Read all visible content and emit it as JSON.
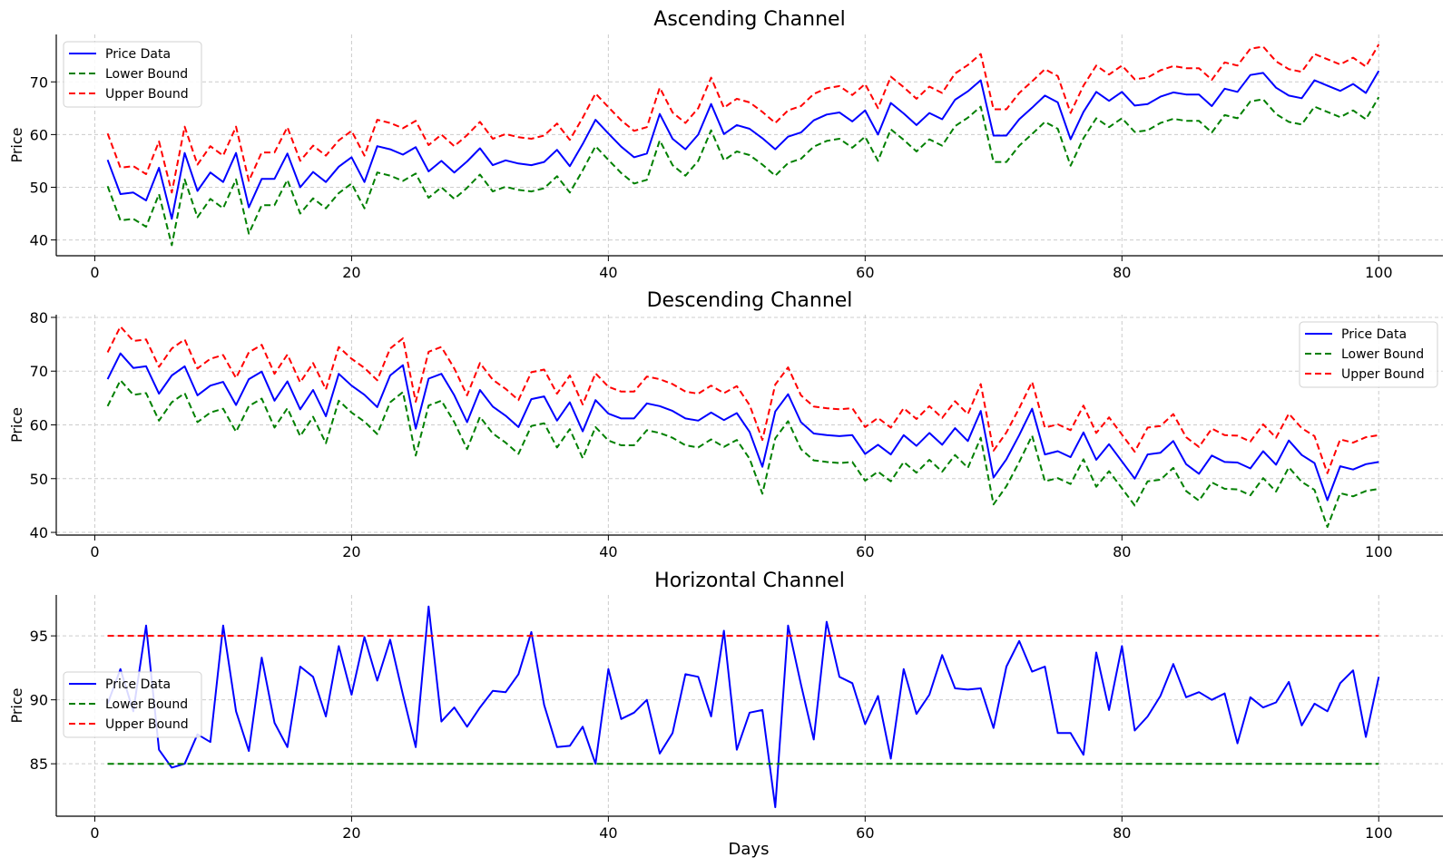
{
  "colors": {
    "price": "#0000ff",
    "lower": "#007f00",
    "upper": "#ff0000",
    "grid": "#cccccc",
    "axis": "#000000"
  },
  "figure": {
    "xlabel": "Days"
  },
  "chart_data": [
    {
      "type": "line",
      "title": "Ascending Channel",
      "xlabel": "",
      "ylabel": "Price",
      "xlim": [
        -3,
        105
      ],
      "ylim": [
        37,
        79
      ],
      "xticks": [
        0,
        20,
        40,
        60,
        80,
        100
      ],
      "yticks": [
        40,
        50,
        60,
        70
      ],
      "grid": true,
      "legend": {
        "position": "top-left",
        "entries": [
          "Price Data",
          "Lower Bound",
          "Upper Bound"
        ]
      },
      "x_start": 1,
      "series": [
        {
          "name": "Price Data",
          "style": "solid",
          "color": "#0000ff",
          "values": [
            55.2,
            48.7,
            49.0,
            47.5,
            53.7,
            44.0,
            56.5,
            49.3,
            52.8,
            51.0,
            56.5,
            46.2,
            51.6,
            51.6,
            56.4,
            50.0,
            52.9,
            51.0,
            53.9,
            55.7,
            51.0,
            57.8,
            57.2,
            56.2,
            57.6,
            53.0,
            55.0,
            52.8,
            54.9,
            57.4,
            54.2,
            55.1,
            54.5,
            54.2,
            54.8,
            57.1,
            54.0,
            58.2,
            62.8,
            60.2,
            57.7,
            55.7,
            56.4,
            63.9,
            59.2,
            57.2,
            60.0,
            65.8,
            60.1,
            61.8,
            61.1,
            59.3,
            57.2,
            59.6,
            60.4,
            62.7,
            63.8,
            64.2,
            62.5,
            64.6,
            60.0,
            66.0,
            64.0,
            61.8,
            64.1,
            62.9,
            66.6,
            68.2,
            70.3,
            59.8,
            59.8,
            62.9,
            65.1,
            67.4,
            66.1,
            59.1,
            64.3,
            68.1,
            66.4,
            68.1,
            65.5,
            65.8,
            67.2,
            68.0,
            67.6,
            67.6,
            65.4,
            68.7,
            68.1,
            71.3,
            71.7,
            68.9,
            67.4,
            66.9,
            70.3,
            69.3,
            68.3,
            69.6,
            67.9,
            72.1
          ]
        },
        {
          "name": "Lower Bound",
          "style": "dashed",
          "color": "#007f00",
          "values": [
            50.2,
            43.7,
            44.0,
            42.5,
            48.7,
            39.0,
            51.5,
            44.3,
            47.8,
            46.0,
            51.5,
            41.2,
            46.6,
            46.6,
            51.4,
            45.0,
            47.9,
            46.0,
            48.9,
            50.7,
            46.0,
            52.8,
            52.2,
            51.2,
            52.6,
            48.0,
            50.0,
            47.8,
            49.9,
            52.4,
            49.2,
            50.1,
            49.5,
            49.2,
            49.8,
            52.1,
            49.0,
            53.2,
            57.8,
            55.2,
            52.7,
            50.7,
            51.4,
            58.9,
            54.2,
            52.2,
            55.0,
            60.8,
            55.1,
            56.8,
            56.1,
            54.3,
            52.2,
            54.6,
            55.4,
            57.7,
            58.8,
            59.2,
            57.5,
            59.6,
            55.0,
            61.0,
            59.0,
            56.8,
            59.1,
            57.9,
            61.6,
            63.2,
            65.3,
            54.8,
            54.8,
            57.9,
            60.1,
            62.4,
            61.1,
            54.1,
            59.3,
            63.1,
            61.4,
            63.1,
            60.5,
            60.8,
            62.2,
            63.0,
            62.6,
            62.6,
            60.4,
            63.7,
            63.1,
            66.3,
            66.7,
            63.9,
            62.4,
            61.9,
            65.3,
            64.3,
            63.3,
            64.6,
            62.9,
            67.1
          ]
        },
        {
          "name": "Upper Bound",
          "style": "dashed",
          "color": "#ff0000",
          "values": [
            60.2,
            53.7,
            54.0,
            52.5,
            58.7,
            49.0,
            61.5,
            54.3,
            57.8,
            56.0,
            61.5,
            51.2,
            56.6,
            56.6,
            61.4,
            55.0,
            57.9,
            56.0,
            58.9,
            60.7,
            56.0,
            62.8,
            62.2,
            61.2,
            62.6,
            58.0,
            60.0,
            57.8,
            59.9,
            62.4,
            59.2,
            60.1,
            59.5,
            59.2,
            59.8,
            62.1,
            59.0,
            63.2,
            67.8,
            65.2,
            62.7,
            60.7,
            61.4,
            68.9,
            64.2,
            62.2,
            65.0,
            70.8,
            65.1,
            66.8,
            66.1,
            64.3,
            62.2,
            64.6,
            65.4,
            67.7,
            68.8,
            69.2,
            67.5,
            69.6,
            65.0,
            71.0,
            69.0,
            66.8,
            69.1,
            67.9,
            71.6,
            73.2,
            75.3,
            64.8,
            64.8,
            67.9,
            70.1,
            72.4,
            71.1,
            64.1,
            69.3,
            73.1,
            71.4,
            73.1,
            70.5,
            70.8,
            72.2,
            73.0,
            72.6,
            72.6,
            70.4,
            73.7,
            73.1,
            76.3,
            76.7,
            73.9,
            72.4,
            71.9,
            75.3,
            74.3,
            73.3,
            74.6,
            72.9,
            77.1
          ]
        }
      ]
    },
    {
      "type": "line",
      "title": "Descending Channel",
      "xlabel": "",
      "ylabel": "Price",
      "xlim": [
        -3,
        105
      ],
      "ylim": [
        39.5,
        80.5
      ],
      "xticks": [
        0,
        20,
        40,
        60,
        80,
        100
      ],
      "yticks": [
        40,
        50,
        60,
        70,
        80
      ],
      "grid": true,
      "legend": {
        "position": "top-right",
        "entries": [
          "Price Data",
          "Lower Bound",
          "Upper Bound"
        ]
      },
      "x_start": 1,
      "series": [
        {
          "name": "Price Data",
          "style": "solid",
          "color": "#0000ff",
          "values": [
            68.5,
            73.3,
            70.6,
            70.9,
            65.8,
            69.2,
            70.9,
            65.5,
            67.3,
            68.0,
            63.7,
            68.5,
            69.9,
            64.5,
            68.1,
            62.9,
            66.5,
            61.6,
            69.5,
            67.3,
            65.6,
            63.3,
            69.2,
            71.1,
            59.3,
            68.6,
            69.5,
            65.5,
            60.5,
            66.5,
            63.4,
            61.7,
            59.6,
            64.8,
            65.3,
            60.8,
            64.2,
            58.8,
            64.6,
            62.1,
            61.2,
            61.2,
            64.0,
            63.5,
            62.6,
            61.2,
            60.8,
            62.3,
            60.9,
            62.2,
            58.7,
            52.2,
            62.5,
            65.7,
            60.5,
            58.4,
            58.1,
            57.9,
            58.1,
            54.6,
            56.3,
            54.5,
            58.1,
            56.1,
            58.5,
            56.3,
            59.4,
            57.0,
            62.6,
            50.2,
            53.6,
            58.1,
            63.0,
            54.5,
            55.1,
            54.0,
            58.6,
            53.5,
            56.4,
            53.2,
            50.0,
            54.5,
            54.8,
            57.0,
            52.7,
            50.9,
            54.3,
            53.1,
            53.0,
            51.9,
            55.1,
            52.6,
            57.1,
            54.4,
            52.9,
            46.0,
            52.3,
            51.7,
            52.7,
            53.1
          ]
        },
        {
          "name": "Lower Bound",
          "style": "dashed",
          "color": "#007f00",
          "values": [
            63.5,
            68.3,
            65.6,
            65.9,
            60.8,
            64.2,
            65.9,
            60.5,
            62.3,
            63.0,
            58.7,
            63.5,
            64.9,
            59.5,
            63.1,
            57.9,
            61.5,
            56.6,
            64.5,
            62.3,
            60.6,
            58.3,
            64.2,
            66.1,
            54.3,
            63.6,
            64.5,
            60.5,
            55.5,
            61.5,
            58.4,
            56.7,
            54.6,
            59.8,
            60.3,
            55.8,
            59.2,
            53.8,
            59.6,
            57.1,
            56.2,
            56.2,
            59.0,
            58.5,
            57.6,
            56.2,
            55.8,
            57.3,
            55.9,
            57.2,
            53.7,
            47.2,
            57.5,
            60.7,
            55.5,
            53.4,
            53.1,
            52.9,
            53.1,
            49.6,
            51.3,
            49.5,
            53.1,
            51.1,
            53.5,
            51.3,
            54.4,
            52.0,
            57.6,
            45.2,
            48.6,
            53.1,
            58.0,
            49.5,
            50.1,
            49.0,
            53.6,
            48.5,
            51.4,
            48.2,
            45.0,
            49.5,
            49.8,
            52.0,
            47.7,
            45.9,
            49.3,
            48.1,
            48.0,
            46.9,
            50.1,
            47.6,
            52.1,
            49.4,
            47.9,
            41.0,
            47.3,
            46.7,
            47.7,
            48.1
          ]
        },
        {
          "name": "Upper Bound",
          "style": "dashed",
          "color": "#ff0000",
          "values": [
            73.5,
            78.3,
            75.6,
            75.9,
            70.8,
            74.2,
            75.9,
            70.5,
            72.3,
            73.0,
            68.7,
            73.5,
            74.9,
            69.5,
            73.1,
            67.9,
            71.5,
            66.6,
            74.5,
            72.3,
            70.6,
            68.3,
            74.2,
            76.1,
            64.3,
            73.6,
            74.5,
            70.5,
            65.5,
            71.5,
            68.4,
            66.7,
            64.6,
            69.8,
            70.3,
            65.8,
            69.2,
            63.8,
            69.6,
            67.1,
            66.2,
            66.2,
            69.0,
            68.5,
            67.6,
            66.2,
            65.8,
            67.3,
            65.9,
            67.2,
            63.7,
            57.2,
            67.5,
            70.7,
            65.5,
            63.4,
            63.1,
            62.9,
            63.1,
            59.6,
            61.3,
            59.5,
            63.1,
            61.1,
            63.5,
            61.3,
            64.4,
            62.0,
            67.6,
            55.2,
            58.6,
            63.1,
            68.0,
            59.5,
            60.1,
            59.0,
            63.6,
            58.5,
            61.4,
            58.2,
            55.0,
            59.5,
            59.8,
            62.0,
            57.7,
            55.9,
            59.3,
            58.1,
            58.0,
            56.9,
            60.1,
            57.6,
            62.1,
            59.4,
            57.9,
            51.0,
            57.3,
            56.7,
            57.7,
            58.1
          ]
        }
      ]
    },
    {
      "type": "line",
      "title": "Horizontal Channel",
      "xlabel": "Days",
      "ylabel": "Price",
      "xlim": [
        -3,
        105
      ],
      "ylim": [
        80.9,
        98.2
      ],
      "xticks": [
        0,
        20,
        40,
        60,
        80,
        100
      ],
      "yticks": [
        85,
        90,
        95
      ],
      "grid": true,
      "legend": {
        "position": "center-left",
        "entries": [
          "Price Data",
          "Lower Bound",
          "Upper Bound"
        ]
      },
      "x_start": 1,
      "series": [
        {
          "name": "Price Data",
          "style": "solid",
          "color": "#0000ff",
          "values": [
            89.7,
            92.4,
            89.1,
            95.8,
            86.1,
            84.7,
            85.0,
            87.3,
            86.7,
            95.8,
            89.1,
            86.0,
            93.3,
            88.2,
            86.3,
            92.6,
            91.8,
            88.7,
            94.2,
            90.4,
            94.9,
            91.5,
            94.7,
            90.4,
            86.3,
            97.3,
            88.3,
            89.4,
            87.9,
            89.4,
            90.7,
            90.6,
            92.0,
            95.3,
            89.6,
            86.3,
            86.4,
            87.9,
            85.0,
            92.4,
            88.5,
            89.0,
            90.0,
            85.8,
            87.4,
            92.0,
            91.8,
            88.7,
            95.4,
            86.1,
            89.0,
            89.2,
            81.6,
            95.8,
            91.2,
            86.9,
            96.1,
            91.8,
            91.3,
            88.1,
            90.3,
            85.4,
            92.4,
            88.9,
            90.4,
            93.5,
            90.9,
            90.8,
            90.9,
            87.8,
            92.6,
            94.6,
            92.2,
            92.6,
            87.4,
            87.4,
            85.7,
            93.7,
            89.2,
            94.2,
            87.6,
            88.7,
            90.3,
            92.8,
            90.2,
            90.6,
            90.0,
            90.5,
            86.6,
            90.2,
            89.4,
            89.8,
            91.4,
            88.0,
            89.7,
            89.1,
            91.3,
            92.3,
            87.1,
            91.8
          ]
        },
        {
          "name": "Lower Bound",
          "style": "dashed",
          "color": "#007f00",
          "values": [
            85,
            85,
            85,
            85,
            85,
            85,
            85,
            85,
            85,
            85,
            85,
            85,
            85,
            85,
            85,
            85,
            85,
            85,
            85,
            85,
            85,
            85,
            85,
            85,
            85,
            85,
            85,
            85,
            85,
            85,
            85,
            85,
            85,
            85,
            85,
            85,
            85,
            85,
            85,
            85,
            85,
            85,
            85,
            85,
            85,
            85,
            85,
            85,
            85,
            85,
            85,
            85,
            85,
            85,
            85,
            85,
            85,
            85,
            85,
            85,
            85,
            85,
            85,
            85,
            85,
            85,
            85,
            85,
            85,
            85,
            85,
            85,
            85,
            85,
            85,
            85,
            85,
            85,
            85,
            85,
            85,
            85,
            85,
            85,
            85,
            85,
            85,
            85,
            85,
            85,
            85,
            85,
            85,
            85,
            85,
            85,
            85,
            85,
            85,
            85
          ]
        },
        {
          "name": "Upper Bound",
          "style": "dashed",
          "color": "#ff0000",
          "values": [
            95,
            95,
            95,
            95,
            95,
            95,
            95,
            95,
            95,
            95,
            95,
            95,
            95,
            95,
            95,
            95,
            95,
            95,
            95,
            95,
            95,
            95,
            95,
            95,
            95,
            95,
            95,
            95,
            95,
            95,
            95,
            95,
            95,
            95,
            95,
            95,
            95,
            95,
            95,
            95,
            95,
            95,
            95,
            95,
            95,
            95,
            95,
            95,
            95,
            95,
            95,
            95,
            95,
            95,
            95,
            95,
            95,
            95,
            95,
            95,
            95,
            95,
            95,
            95,
            95,
            95,
            95,
            95,
            95,
            95,
            95,
            95,
            95,
            95,
            95,
            95,
            95,
            95,
            95,
            95,
            95,
            95,
            95,
            95,
            95,
            95,
            95,
            95,
            95,
            95,
            95,
            95,
            95,
            95,
            95,
            95,
            95,
            95,
            95,
            95
          ]
        }
      ]
    }
  ]
}
